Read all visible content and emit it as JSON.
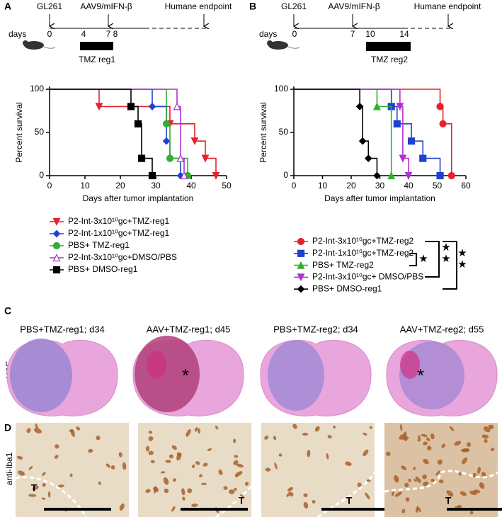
{
  "panels": [
    "A",
    "B",
    "C",
    "D"
  ],
  "timelines": [
    {
      "gl261": "GL261",
      "virus": "AAV9/mIFN-β",
      "endpoint": "Humane endpoint",
      "days": "days",
      "day_labels": [
        "0",
        "4",
        "7 8"
      ],
      "regimen": "TMZ reg1"
    },
    {
      "gl261": "GL261",
      "virus": "AAV9/mIFN-β",
      "endpoint": "Humane endpoint",
      "days": "days",
      "day_labels": [
        "0",
        "7",
        "10",
        "14"
      ],
      "regimen": "TMZ reg2"
    }
  ],
  "chart_data": [
    {
      "type": "step",
      "xlabel": "Days after tumor implantation",
      "ylabel": "Percent survival",
      "xlim": [
        0,
        50
      ],
      "xticks": [
        0,
        10,
        20,
        30,
        40,
        50
      ],
      "ylim": [
        0,
        100
      ],
      "yticks": [
        0,
        50,
        100
      ],
      "legend": "below",
      "series": [
        {
          "name": "P2-Int-3x10¹⁰gc+TMZ-reg1",
          "color": "#e8202a",
          "marker": "triangle-down",
          "x": [
            0,
            14,
            34,
            41,
            44,
            47
          ],
          "values": [
            100,
            80,
            60,
            40,
            20,
            0
          ]
        },
        {
          "name": "P2-Int-1x10¹⁰gc+TMZ-reg1",
          "color": "#2040d0",
          "marker": "diamond",
          "x": [
            0,
            29,
            33,
            34,
            37
          ],
          "values": [
            100,
            80,
            40,
            20,
            0
          ]
        },
        {
          "name": "PBS+ TMZ-reg1",
          "color": "#30b030",
          "marker": "circle",
          "x": [
            0,
            33,
            34,
            39
          ],
          "values": [
            100,
            60,
            20,
            0
          ]
        },
        {
          "name": "P2-Int-3x10¹⁰gc+DMSO/PBS",
          "color": "#b030d0",
          "marker": "triangle-up-open",
          "x": [
            0,
            36,
            37,
            38
          ],
          "values": [
            100,
            80,
            20,
            0
          ]
        },
        {
          "name": "PBS+ DMSO-reg1",
          "color": "#000000",
          "marker": "square",
          "x": [
            0,
            23,
            25,
            26,
            29
          ],
          "values": [
            100,
            80,
            60,
            20,
            0
          ]
        }
      ]
    },
    {
      "type": "step",
      "xlabel": "Days after tumor implantation",
      "ylabel": "Percent survival",
      "xlim": [
        0,
        60
      ],
      "xticks": [
        0,
        10,
        20,
        30,
        40,
        50,
        60
      ],
      "ylim": [
        0,
        100
      ],
      "yticks": [
        0,
        50,
        100
      ],
      "legend": "below",
      "series": [
        {
          "name": "P2-Int-3x10¹⁰gc+TMZ-reg2",
          "color": "#e8202a",
          "marker": "circle",
          "x": [
            0,
            51,
            52,
            55
          ],
          "values": [
            100,
            80,
            60,
            0
          ]
        },
        {
          "name": "P2-Int-1x10¹⁰gc+TMZ-reg2",
          "color": "#2040d0",
          "marker": "square",
          "x": [
            0,
            34,
            36,
            41,
            45,
            51
          ],
          "values": [
            100,
            80,
            60,
            40,
            20,
            0
          ]
        },
        {
          "name": "PBS+ TMZ-reg2",
          "color": "#30b030",
          "marker": "triangle-up",
          "x": [
            0,
            29,
            34
          ],
          "values": [
            100,
            80,
            0
          ]
        },
        {
          "name": "P2-Int-3x10¹⁰gc+ DMSO/PBS",
          "color": "#b030d0",
          "marker": "triangle-down",
          "x": [
            0,
            37,
            38,
            40
          ],
          "values": [
            100,
            80,
            20,
            0
          ]
        },
        {
          "name": "PBS+ DMSO-reg1",
          "color": "#000000",
          "marker": "diamond",
          "x": [
            0,
            23,
            24,
            26,
            29
          ],
          "values": [
            100,
            80,
            40,
            20,
            0
          ]
        }
      ],
      "significance": [
        [
          "★"
        ],
        [
          "★",
          "★"
        ],
        [
          "★",
          "★"
        ]
      ]
    }
  ],
  "histology": {
    "stain": "H&E",
    "titles": [
      "PBS+TMZ-reg1; d34",
      "AAV+TMZ-reg1; d45",
      "PBS+TMZ-reg2; d34",
      "AAV+TMZ-reg2; d55"
    ],
    "markers": [
      "*",
      "*"
    ]
  },
  "ihc": {
    "stain": "anti-Iba1",
    "tumor_labels": [
      "T",
      "T",
      "T",
      "T"
    ]
  }
}
